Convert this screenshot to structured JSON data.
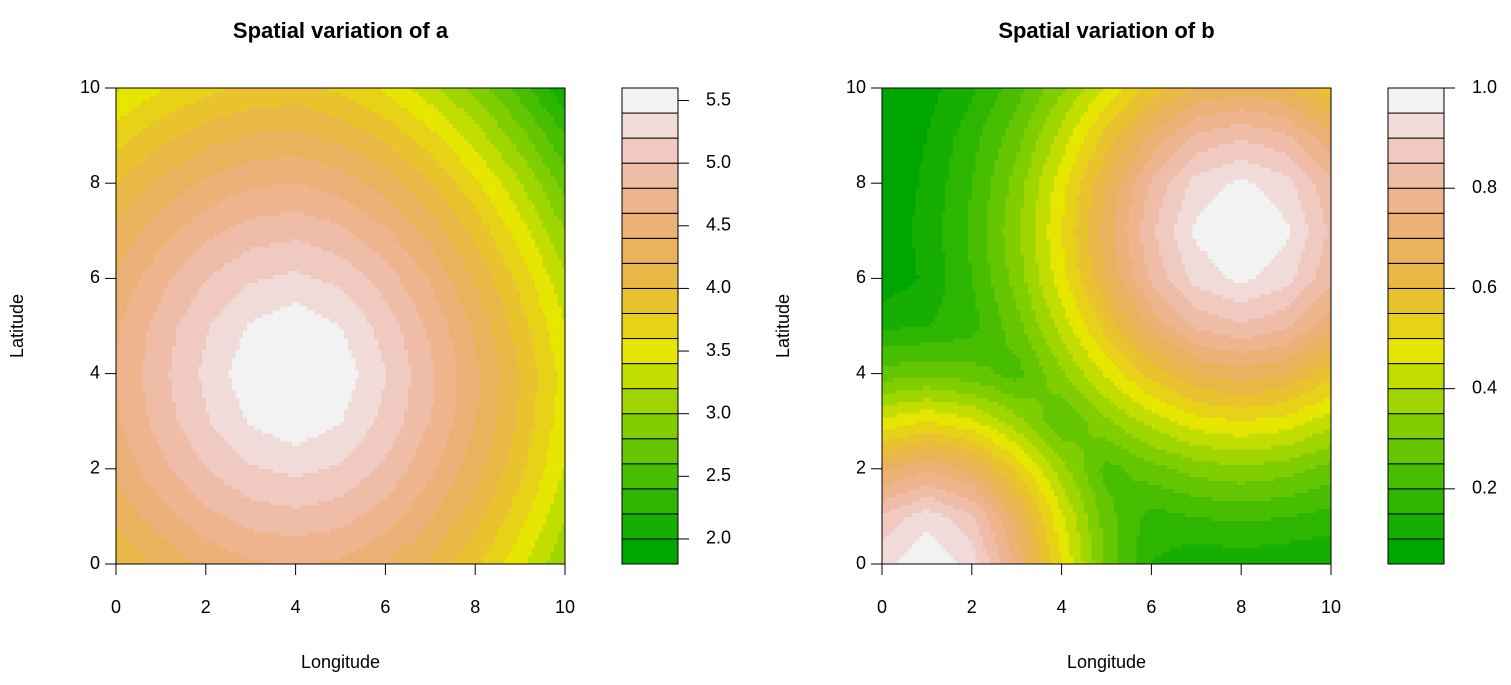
{
  "chart_data": [
    {
      "type": "contour",
      "title": "Spatial variation of a",
      "xlabel": "Longitude",
      "ylabel": "Latitude",
      "x": [
        0,
        1,
        2,
        3,
        4,
        5,
        6,
        7,
        8,
        9,
        10
      ],
      "y": [
        0,
        1,
        2,
        3,
        4,
        5,
        6,
        7,
        8,
        9,
        10
      ],
      "z": [
        [
          4.0,
          4.25,
          4.44,
          4.57,
          4.61,
          4.56,
          4.4,
          4.16,
          3.84,
          3.46,
          3.01
        ],
        [
          4.25,
          4.52,
          4.74,
          4.89,
          4.94,
          4.88,
          4.7,
          4.43,
          4.09,
          3.68,
          3.22
        ],
        [
          4.44,
          4.74,
          5.0,
          5.18,
          5.25,
          5.17,
          4.96,
          4.65,
          4.28,
          3.86,
          3.38
        ],
        [
          4.57,
          4.89,
          5.18,
          5.42,
          5.54,
          5.41,
          5.14,
          4.8,
          4.41,
          3.96,
          3.48
        ],
        [
          4.61,
          4.94,
          5.25,
          5.54,
          5.8,
          5.53,
          5.21,
          4.85,
          4.45,
          4.0,
          3.51
        ],
        [
          4.57,
          4.89,
          5.18,
          5.42,
          5.54,
          5.4,
          5.12,
          4.76,
          4.36,
          3.9,
          3.41
        ],
        [
          4.44,
          4.74,
          5.0,
          5.18,
          5.25,
          5.15,
          4.91,
          4.58,
          4.18,
          3.74,
          3.24
        ],
        [
          4.25,
          4.52,
          4.74,
          4.89,
          4.94,
          4.84,
          4.63,
          4.32,
          3.95,
          3.5,
          3.0
        ],
        [
          4.0,
          4.25,
          4.44,
          4.57,
          4.61,
          4.51,
          4.3,
          4.02,
          3.65,
          3.22,
          2.72
        ],
        [
          3.71,
          3.93,
          4.11,
          4.21,
          4.25,
          4.14,
          3.95,
          3.66,
          3.31,
          2.88,
          2.4
        ],
        [
          3.37,
          3.58,
          3.74,
          3.84,
          3.87,
          3.76,
          3.56,
          3.27,
          2.92,
          2.51,
          2.03
        ]
      ],
      "xlim": [
        0,
        10
      ],
      "ylim": [
        0,
        10
      ],
      "xticks": [
        0,
        2,
        4,
        6,
        8,
        10
      ],
      "yticks": [
        0,
        2,
        4,
        6,
        8,
        10
      ],
      "levels": [
        1.8,
        2.0,
        2.2,
        2.4,
        2.6,
        2.8,
        3.0,
        3.2,
        3.4,
        3.6,
        3.8,
        4.0,
        4.2,
        4.4,
        4.6,
        4.8,
        5.0,
        5.2,
        5.4,
        5.6
      ],
      "colors": [
        "#00A600",
        "#16AE00",
        "#2DB600",
        "#47BE00",
        "#63C600",
        "#80CE00",
        "#A0D600",
        "#C2DE00",
        "#E6E600",
        "#E7D217",
        "#E8C32E",
        "#E9B846",
        "#EBB25E",
        "#ECB176",
        "#EDB48E",
        "#EEBCA7",
        "#F0C9C0",
        "#F1DBD9",
        "#F2F2F2"
      ],
      "colorbar_ticks": [
        {
          "value": 2,
          "label": "2.0"
        },
        2.5,
        {
          "value": 3,
          "label": "3.0"
        },
        3.5,
        {
          "value": 4,
          "label": "4.0"
        },
        4.5,
        {
          "value": 5,
          "label": "5.0"
        },
        5.5
      ]
    },
    {
      "type": "contour",
      "title": "Spatial variation of b",
      "xlabel": "Longitude",
      "ylabel": "Latitude",
      "x": [
        0,
        1,
        2,
        3,
        4,
        5,
        6,
        7,
        8,
        9,
        10
      ],
      "y": [
        0,
        1,
        2,
        3,
        4,
        5,
        6,
        7,
        8,
        9,
        10
      ],
      "z": [
        [
          0.93,
          1.0,
          0.93,
          0.74,
          0.5,
          0.29,
          0.15,
          0.11,
          0.12,
          0.11,
          0.1
        ],
        [
          0.86,
          0.93,
          0.86,
          0.68,
          0.46,
          0.27,
          0.18,
          0.2,
          0.21,
          0.2,
          0.18
        ],
        [
          0.68,
          0.74,
          0.68,
          0.54,
          0.37,
          0.23,
          0.28,
          0.32,
          0.34,
          0.32,
          0.28
        ],
        [
          0.46,
          0.5,
          0.46,
          0.37,
          0.25,
          0.34,
          0.42,
          0.48,
          0.5,
          0.48,
          0.42
        ],
        [
          0.27,
          0.29,
          0.27,
          0.23,
          0.34,
          0.46,
          0.57,
          0.65,
          0.68,
          0.65,
          0.57
        ],
        [
          0.14,
          0.15,
          0.18,
          0.28,
          0.42,
          0.57,
          0.71,
          0.81,
          0.84,
          0.81,
          0.71
        ],
        [
          0.06,
          0.11,
          0.2,
          0.32,
          0.48,
          0.65,
          0.81,
          0.92,
          0.96,
          0.92,
          0.81
        ],
        [
          0.06,
          0.12,
          0.21,
          0.34,
          0.5,
          0.68,
          0.84,
          0.96,
          1.0,
          0.96,
          0.84
        ],
        [
          0.06,
          0.11,
          0.2,
          0.32,
          0.48,
          0.65,
          0.81,
          0.92,
          0.96,
          0.92,
          0.81
        ],
        [
          0.05,
          0.1,
          0.18,
          0.28,
          0.42,
          0.57,
          0.71,
          0.81,
          0.84,
          0.81,
          0.71
        ],
        [
          0.04,
          0.08,
          0.14,
          0.23,
          0.34,
          0.46,
          0.57,
          0.65,
          0.68,
          0.65,
          0.57
        ]
      ],
      "xlim": [
        0,
        10
      ],
      "ylim": [
        0,
        10
      ],
      "xticks": [
        0,
        2,
        4,
        6,
        8,
        10
      ],
      "yticks": [
        0,
        2,
        4,
        6,
        8,
        10
      ],
      "levels": [
        0.05,
        0.1,
        0.15,
        0.2,
        0.25,
        0.3,
        0.35,
        0.4,
        0.45,
        0.5,
        0.55,
        0.6,
        0.65,
        0.7,
        0.75,
        0.8,
        0.85,
        0.9,
        0.95,
        1.0
      ],
      "colors": [
        "#00A600",
        "#16AE00",
        "#2DB600",
        "#47BE00",
        "#63C600",
        "#80CE00",
        "#A0D600",
        "#C2DE00",
        "#E6E600",
        "#E7D217",
        "#E8C32E",
        "#E9B846",
        "#EBB25E",
        "#ECB176",
        "#EDB48E",
        "#EEBCA7",
        "#F0C9C0",
        "#F1DBD9",
        "#F2F2F2"
      ],
      "colorbar_ticks": [
        0.2,
        0.4,
        0.6,
        0.8,
        {
          "value": 1,
          "label": "1.0"
        }
      ]
    }
  ]
}
